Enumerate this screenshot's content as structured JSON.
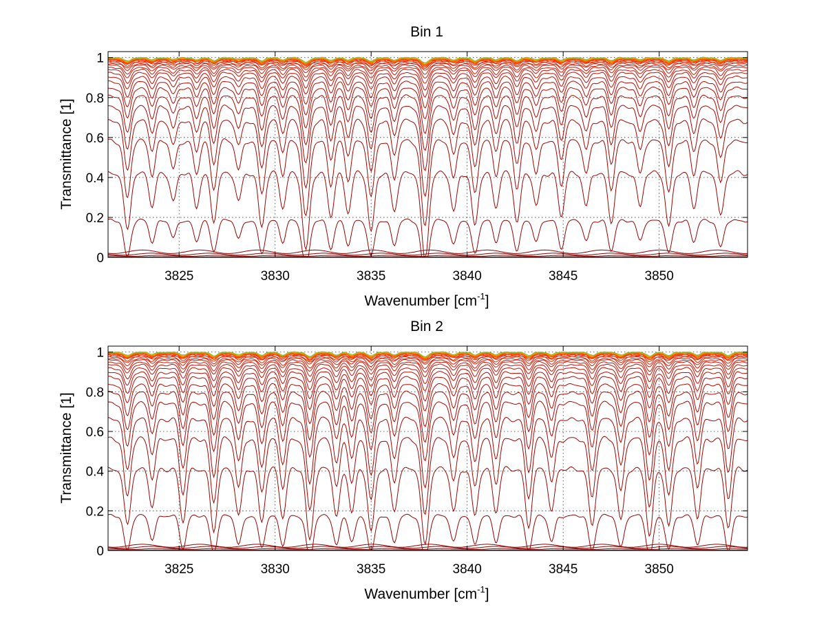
{
  "chart_data": [
    {
      "type": "line",
      "title": "Bin 1",
      "xlabel": "Wavenumber [cm",
      "xlabel_sup": "-1",
      "xlabel_end": "]",
      "ylabel": "Transmittance [1]",
      "xlim": [
        3821.3,
        3854.6
      ],
      "ylim": [
        0,
        1.03
      ],
      "xticks": [
        3825,
        3830,
        3835,
        3840,
        3845,
        3850
      ],
      "xtick_labels": [
        "3825",
        "3830",
        "3835",
        "3840",
        "3845",
        "3850"
      ],
      "yticks": [
        0,
        0.2,
        0.4,
        0.6,
        0.8,
        1
      ],
      "ytick_labels": [
        "0",
        "0.2",
        "0.4",
        "0.6",
        "0.8",
        "1"
      ],
      "grid": true,
      "series_count": 30,
      "series_baselines": [
        0.003,
        0.01,
        0.02,
        0.035,
        0.19,
        0.43,
        0.59,
        0.69,
        0.76,
        0.81,
        0.85,
        0.88,
        0.905,
        0.925,
        0.94,
        0.952,
        0.962,
        0.97,
        0.976,
        0.981,
        0.985,
        0.988,
        0.991,
        0.993,
        0.995,
        0.996,
        0.997,
        0.998,
        0.999,
        0.9995
      ],
      "absorption_lines": [
        {
          "x": 3822.3,
          "depth": 0.6
        },
        {
          "x": 3823.6,
          "depth": 0.35
        },
        {
          "x": 3824.7,
          "depth": 0.3
        },
        {
          "x": 3825.9,
          "depth": 0.35
        },
        {
          "x": 3826.8,
          "depth": 0.5
        },
        {
          "x": 3828.1,
          "depth": 0.3
        },
        {
          "x": 3829.3,
          "depth": 0.55
        },
        {
          "x": 3830.4,
          "depth": 0.35
        },
        {
          "x": 3831.6,
          "depth": 0.8
        },
        {
          "x": 3832.9,
          "depth": 0.45
        },
        {
          "x": 3833.8,
          "depth": 0.4
        },
        {
          "x": 3835.0,
          "depth": 0.6
        },
        {
          "x": 3836.2,
          "depth": 0.4
        },
        {
          "x": 3837.8,
          "depth": 0.9
        },
        {
          "x": 3839.3,
          "depth": 0.4
        },
        {
          "x": 3840.4,
          "depth": 0.55
        },
        {
          "x": 3841.5,
          "depth": 0.35
        },
        {
          "x": 3842.6,
          "depth": 0.5
        },
        {
          "x": 3843.6,
          "depth": 0.35
        },
        {
          "x": 3844.9,
          "depth": 0.45
        },
        {
          "x": 3846.2,
          "depth": 0.35
        },
        {
          "x": 3847.5,
          "depth": 0.5
        },
        {
          "x": 3849.0,
          "depth": 0.35
        },
        {
          "x": 3850.5,
          "depth": 0.55
        },
        {
          "x": 3851.8,
          "depth": 0.35
        },
        {
          "x": 3853.2,
          "depth": 0.45
        }
      ]
    },
    {
      "type": "line",
      "title": "Bin 2",
      "xlabel": "Wavenumber [cm",
      "xlabel_sup": "-1",
      "xlabel_end": "]",
      "ylabel": "Transmittance [1]",
      "xlim": [
        3821.3,
        3854.6
      ],
      "ylim": [
        0,
        1.03
      ],
      "xticks": [
        3825,
        3830,
        3835,
        3840,
        3845,
        3850
      ],
      "xtick_labels": [
        "3825",
        "3830",
        "3835",
        "3840",
        "3845",
        "3850"
      ],
      "yticks": [
        0,
        0.2,
        0.4,
        0.6,
        0.8,
        1
      ],
      "ytick_labels": [
        "0",
        "0.2",
        "0.4",
        "0.6",
        "0.8",
        "1"
      ],
      "grid": true,
      "series_count": 30,
      "series_baselines": [
        0.003,
        0.01,
        0.02,
        0.03,
        0.18,
        0.42,
        0.57,
        0.67,
        0.75,
        0.8,
        0.84,
        0.875,
        0.9,
        0.92,
        0.937,
        0.95,
        0.96,
        0.968,
        0.975,
        0.98,
        0.984,
        0.988,
        0.991,
        0.993,
        0.995,
        0.996,
        0.997,
        0.998,
        0.999,
        0.9995
      ],
      "absorption_lines": [
        {
          "x": 3822.3,
          "depth": 0.6
        },
        {
          "x": 3823.6,
          "depth": 0.4
        },
        {
          "x": 3825.2,
          "depth": 0.55
        },
        {
          "x": 3826.8,
          "depth": 0.65
        },
        {
          "x": 3828.1,
          "depth": 0.5
        },
        {
          "x": 3829.3,
          "depth": 0.55
        },
        {
          "x": 3830.4,
          "depth": 0.5
        },
        {
          "x": 3831.8,
          "depth": 0.75
        },
        {
          "x": 3833.2,
          "depth": 0.5
        },
        {
          "x": 3834.0,
          "depth": 0.45
        },
        {
          "x": 3835.0,
          "depth": 0.65
        },
        {
          "x": 3836.2,
          "depth": 0.45
        },
        {
          "x": 3837.8,
          "depth": 0.8
        },
        {
          "x": 3839.3,
          "depth": 0.45
        },
        {
          "x": 3840.4,
          "depth": 0.5
        },
        {
          "x": 3841.5,
          "depth": 0.45
        },
        {
          "x": 3843.2,
          "depth": 0.6
        },
        {
          "x": 3844.4,
          "depth": 0.45
        },
        {
          "x": 3846.5,
          "depth": 0.6
        },
        {
          "x": 3848.0,
          "depth": 0.55
        },
        {
          "x": 3849.5,
          "depth": 0.7
        },
        {
          "x": 3850.5,
          "depth": 0.6
        },
        {
          "x": 3852.0,
          "depth": 0.5
        },
        {
          "x": 3853.6,
          "depth": 0.6
        }
      ]
    }
  ]
}
